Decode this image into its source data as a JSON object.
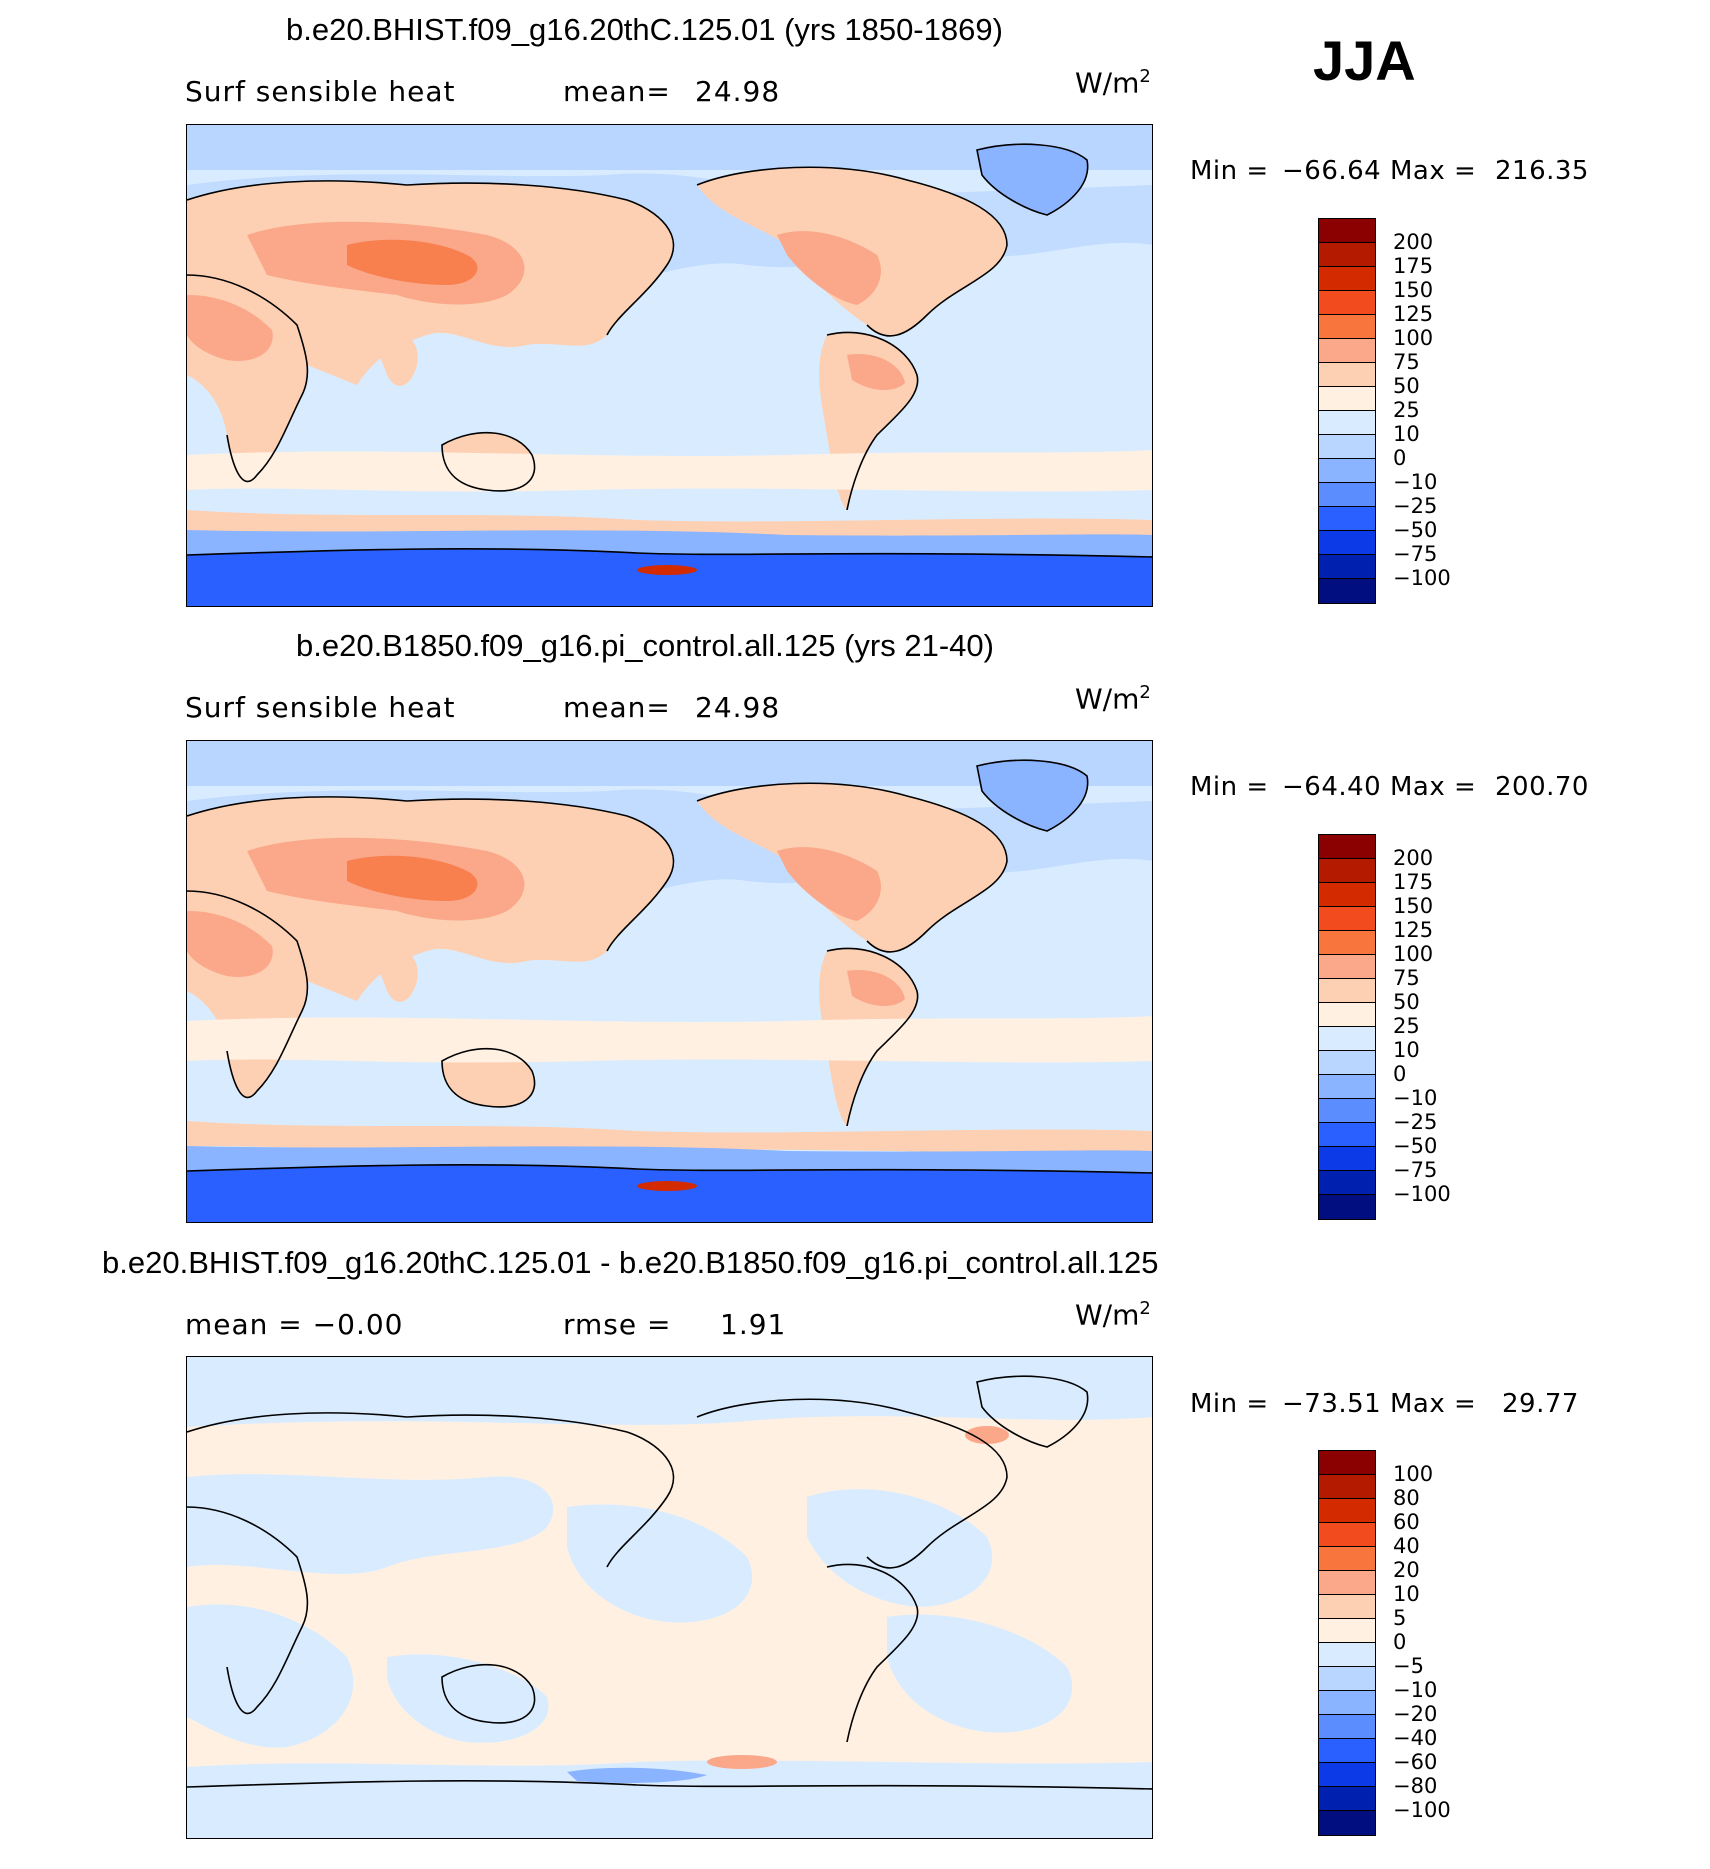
{
  "season": "JJA",
  "panels": [
    {
      "title": "b.e20.BHIST.f09_g16.20thC.125.01 (yrs 1850-1869)",
      "left_label": "Surf  sensible  heat",
      "stat_label": "mean=",
      "stat_value": "24.98",
      "units": "W/m",
      "units_sup": "2",
      "min_label": "Min  =",
      "min_value": "−66.64",
      "max_label": "Max  =",
      "max_value": "216.35",
      "levels": [
        "200",
        "175",
        "150",
        "125",
        "100",
        "75",
        "50",
        "25",
        "10",
        "0",
        "−10",
        "−25",
        "−50",
        "−75",
        "−100"
      ],
      "colors": [
        "#8b0000",
        "#b31a00",
        "#d42a00",
        "#f24c1e",
        "#f8763e",
        "#fba78a",
        "#fdd0b3",
        "#fff0e2",
        "#d9ecff",
        "#b8d6ff",
        "#8ab4ff",
        "#5b8dff",
        "#2a60ff",
        "#0c3ae6",
        "#0020b0",
        "#000e80"
      ]
    },
    {
      "title": "b.e20.B1850.f09_g16.pi_control.all.125 (yrs 21-40)",
      "left_label": "Surf  sensible  heat",
      "stat_label": "mean=",
      "stat_value": "24.98",
      "units": "W/m",
      "units_sup": "2",
      "min_label": "Min  =",
      "min_value": "−64.40",
      "max_label": "Max  =",
      "max_value": "200.70",
      "levels": [
        "200",
        "175",
        "150",
        "125",
        "100",
        "75",
        "50",
        "25",
        "10",
        "0",
        "−10",
        "−25",
        "−50",
        "−75",
        "−100"
      ],
      "colors": [
        "#8b0000",
        "#b31a00",
        "#d42a00",
        "#f24c1e",
        "#f8763e",
        "#fba78a",
        "#fdd0b3",
        "#fff0e2",
        "#d9ecff",
        "#b8d6ff",
        "#8ab4ff",
        "#5b8dff",
        "#2a60ff",
        "#0c3ae6",
        "#0020b0",
        "#000e80"
      ]
    },
    {
      "title": "b.e20.BHIST.f09_g16.20thC.125.01 - b.e20.B1850.f09_g16.pi_control.all.125",
      "left_label": "mean  =    −0.00",
      "stat_label": "rmse  =",
      "stat_value": "1.91",
      "units": "W/m",
      "units_sup": "2",
      "min_label": "Min  =",
      "min_value": "−73.51",
      "max_label": "Max  =",
      "max_value": "29.77",
      "levels": [
        "100",
        "80",
        "60",
        "40",
        "20",
        "10",
        "5",
        "0",
        "−5",
        "−10",
        "−20",
        "−40",
        "−60",
        "−80",
        "−100"
      ],
      "colors": [
        "#8b0000",
        "#b31a00",
        "#d42a00",
        "#f24c1e",
        "#f8763e",
        "#fba78a",
        "#fdd0b3",
        "#fff0e2",
        "#d9ecff",
        "#b8d6ff",
        "#8ab4ff",
        "#5b8dff",
        "#2a60ff",
        "#0c3ae6",
        "#0020b0",
        "#000e80"
      ]
    }
  ]
}
